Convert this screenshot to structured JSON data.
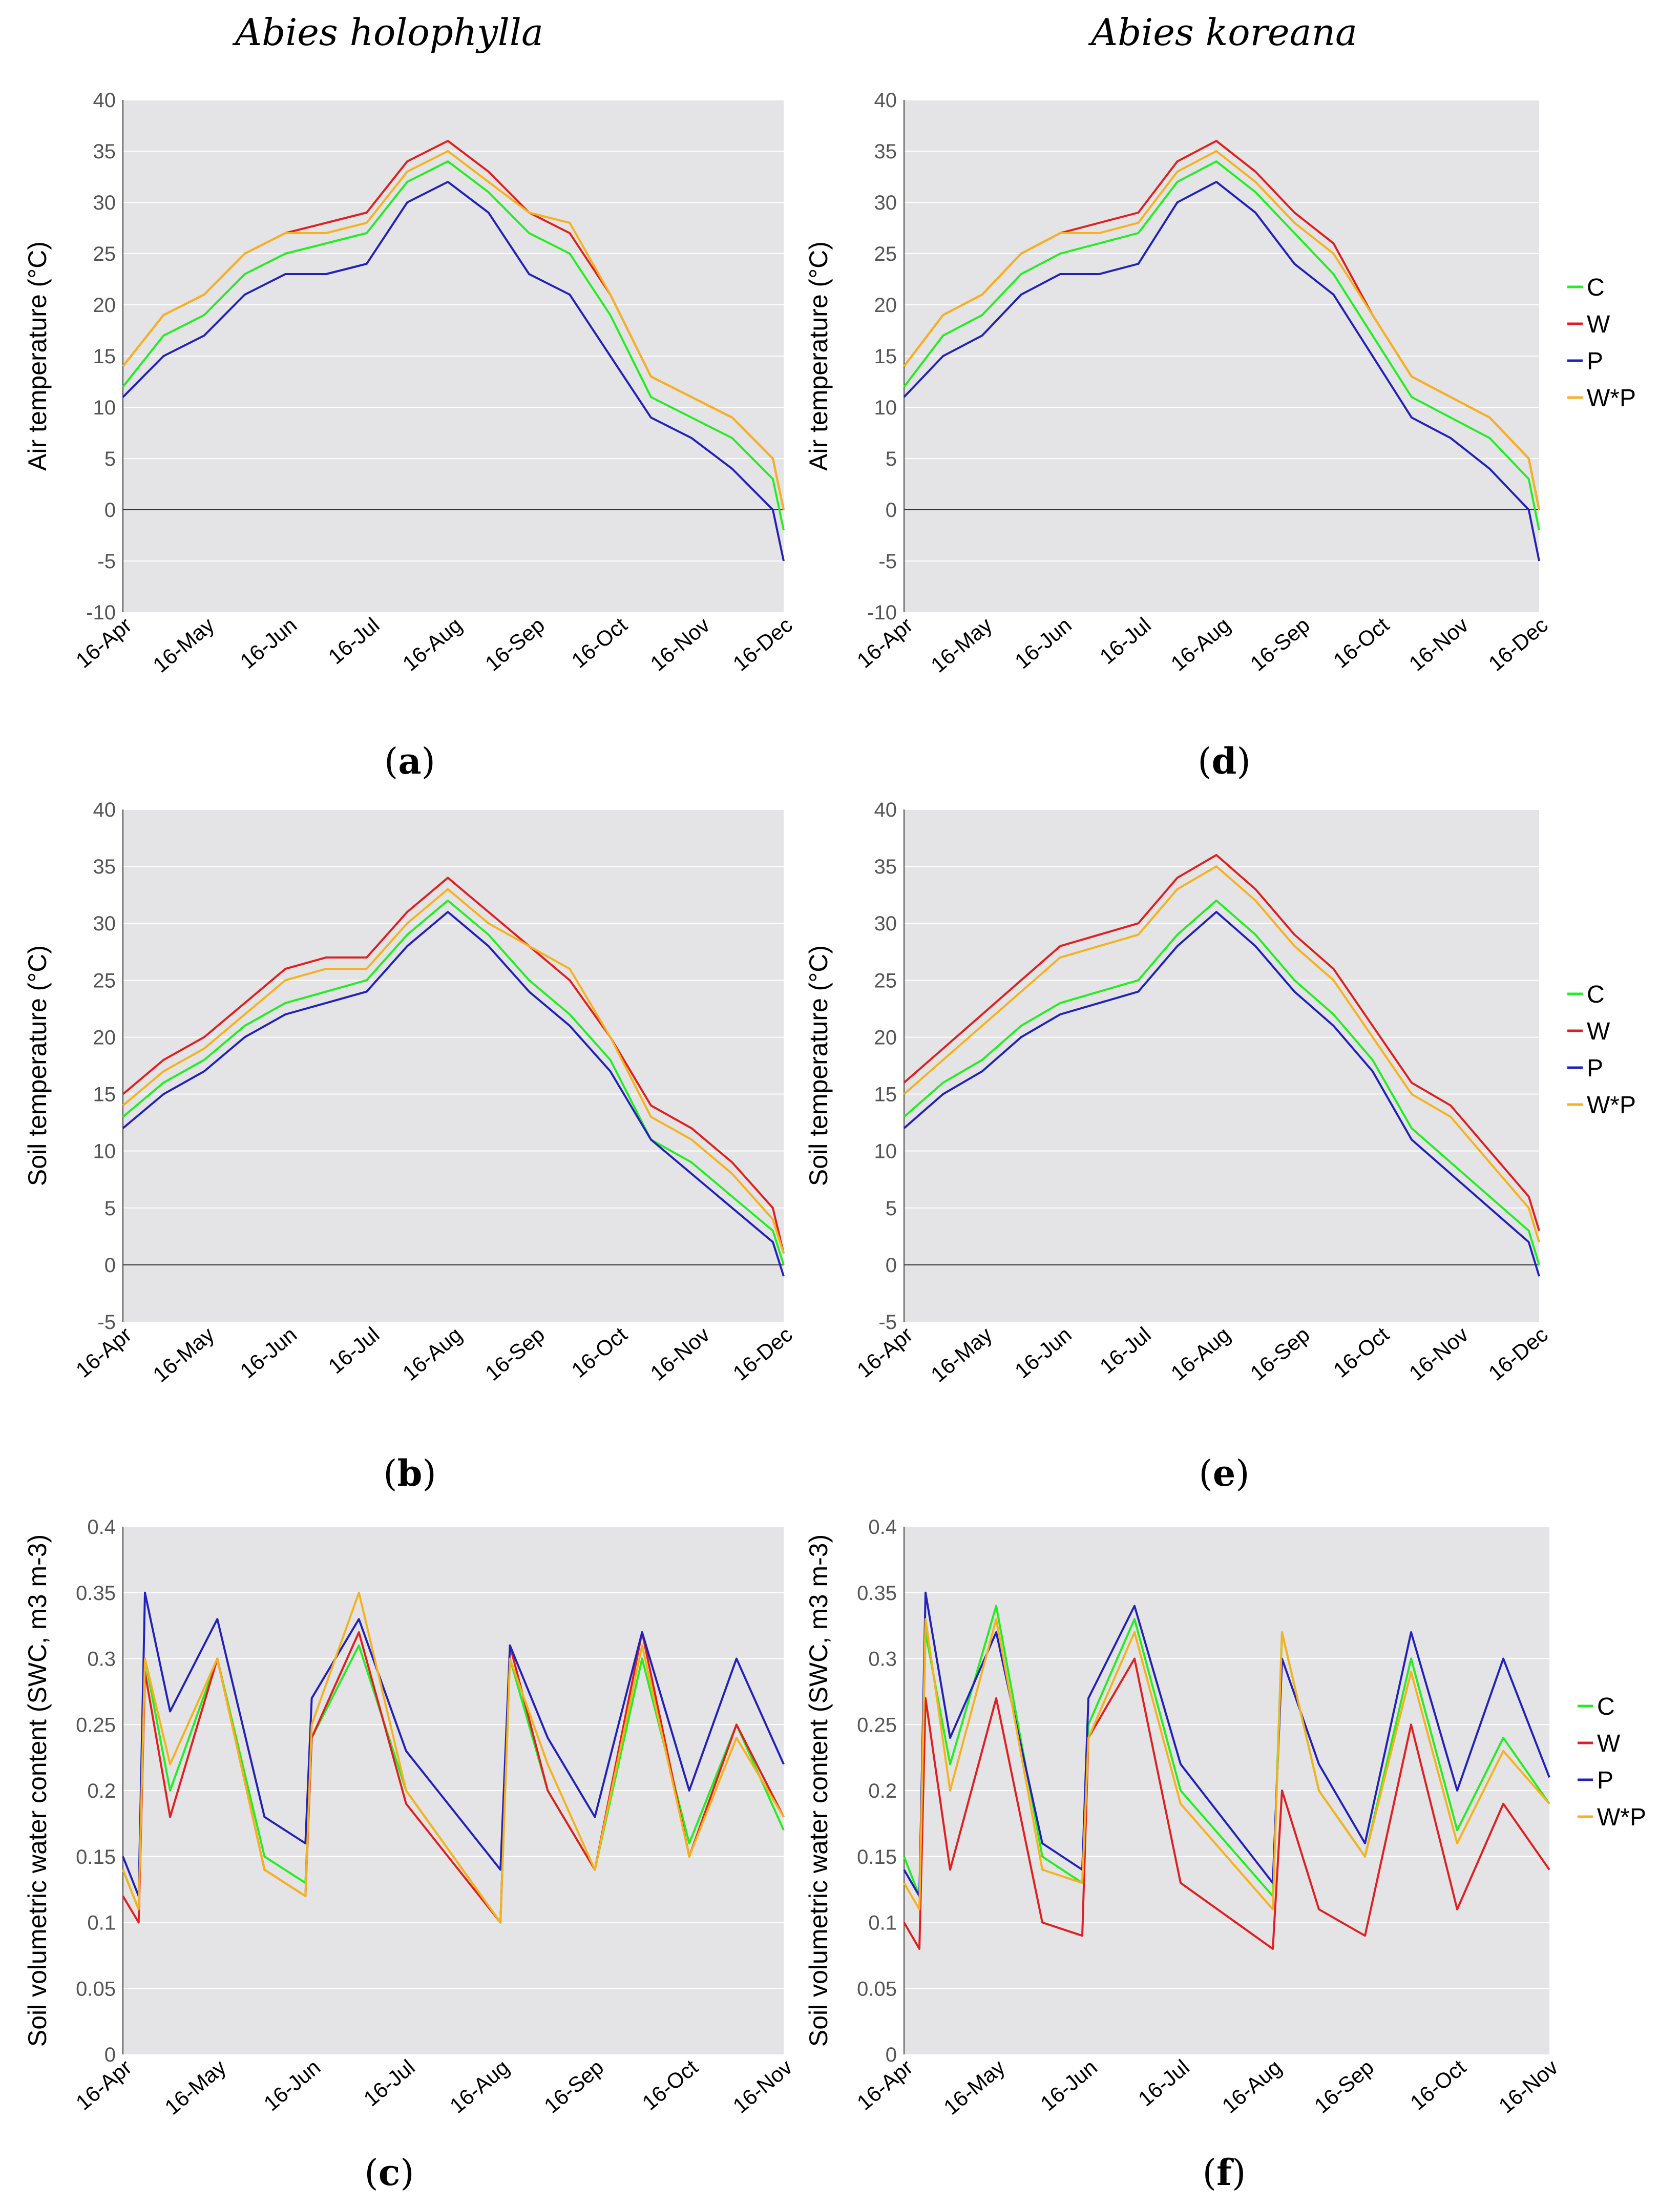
{
  "columns": [
    "Abies holophylla",
    "Abies koreana"
  ],
  "series_colors": {
    "C": "#22ee22",
    "W": "#e02020",
    "P": "#2222bb",
    "W*P": "#f5b21e"
  },
  "legend": [
    "C",
    "W",
    "P",
    "W*P"
  ],
  "chart_data": [
    {
      "id": "a",
      "caption": "a",
      "type": "line",
      "species": "Abies holophylla",
      "ylabel": "Air temperature (°C)",
      "xlabel": "",
      "ylim": [
        -10,
        40
      ],
      "yticks": [
        -10,
        -5,
        0,
        5,
        10,
        15,
        20,
        25,
        30,
        35,
        40
      ],
      "xticklabels": [
        "16-Apr",
        "16-May",
        "16-Jun",
        "16-Jul",
        "16-Aug",
        "16-Sep",
        "16-Oct",
        "16-Nov",
        "16-Dec"
      ],
      "x": [
        0,
        15,
        30,
        45,
        60,
        75,
        90,
        105,
        120,
        135,
        150,
        165,
        180,
        195,
        210,
        225,
        240,
        244
      ],
      "series": [
        {
          "name": "C",
          "values": [
            12,
            17,
            19,
            23,
            25,
            26,
            27,
            32,
            34,
            31,
            27,
            25,
            19,
            11,
            9,
            7,
            3,
            -2
          ]
        },
        {
          "name": "W",
          "values": [
            14,
            19,
            21,
            25,
            27,
            28,
            29,
            34,
            36,
            33,
            29,
            27,
            21,
            13,
            11,
            9,
            5,
            0
          ]
        },
        {
          "name": "P",
          "values": [
            11,
            15,
            17,
            21,
            23,
            23,
            24,
            30,
            32,
            29,
            23,
            21,
            15,
            9,
            7,
            4,
            0,
            -5
          ]
        },
        {
          "name": "W*P",
          "values": [
            14,
            19,
            21,
            25,
            27,
            27,
            28,
            33,
            35,
            32,
            29,
            28,
            21,
            13,
            11,
            9,
            5,
            0
          ]
        }
      ]
    },
    {
      "id": "b",
      "caption": "b",
      "type": "line",
      "species": "Abies holophylla",
      "ylabel": "Soil temperature (°C)",
      "xlabel": "",
      "ylim": [
        -5,
        40
      ],
      "yticks": [
        -5,
        0,
        5,
        10,
        15,
        20,
        25,
        30,
        35,
        40
      ],
      "xticklabels": [
        "16-Apr",
        "16-May",
        "16-Jun",
        "16-Jul",
        "16-Aug",
        "16-Sep",
        "16-Oct",
        "16-Nov",
        "16-Dec"
      ],
      "x": [
        0,
        15,
        30,
        45,
        60,
        75,
        90,
        105,
        120,
        135,
        150,
        165,
        180,
        195,
        210,
        225,
        240,
        244
      ],
      "series": [
        {
          "name": "C",
          "values": [
            13,
            16,
            18,
            21,
            23,
            24,
            25,
            29,
            32,
            29,
            25,
            22,
            18,
            11,
            9,
            6,
            3,
            0
          ]
        },
        {
          "name": "W",
          "values": [
            15,
            18,
            20,
            23,
            26,
            27,
            27,
            31,
            34,
            31,
            28,
            25,
            20,
            14,
            12,
            9,
            5,
            1
          ]
        },
        {
          "name": "P",
          "values": [
            12,
            15,
            17,
            20,
            22,
            23,
            24,
            28,
            31,
            28,
            24,
            21,
            17,
            11,
            8,
            5,
            2,
            -1
          ]
        },
        {
          "name": "W*P",
          "values": [
            14,
            17,
            19,
            22,
            25,
            26,
            26,
            30,
            33,
            30,
            28,
            26,
            20,
            13,
            11,
            8,
            4,
            1
          ]
        }
      ]
    },
    {
      "id": "c",
      "caption": "c",
      "type": "line",
      "species": "Abies holophylla",
      "ylabel": "Soil volumetric water content (SWC, m3 m-3)",
      "xlabel": "",
      "ylim": [
        0,
        0.4
      ],
      "yticks": [
        0,
        0.05,
        0.1,
        0.15,
        0.2,
        0.25,
        0.3,
        0.35,
        0.4
      ],
      "xticklabels": [
        "16-Apr",
        "16-May",
        "16-Jun",
        "16-Jul",
        "16-Aug",
        "16-Sep",
        "16-Oct",
        "16-Nov"
      ],
      "x": [
        0,
        5,
        7,
        15,
        30,
        45,
        58,
        60,
        75,
        90,
        120,
        123,
        135,
        150,
        165,
        180,
        195,
        210
      ],
      "series": [
        {
          "name": "C",
          "values": [
            0.14,
            0.11,
            0.3,
            0.2,
            0.3,
            0.15,
            0.13,
            0.24,
            0.31,
            0.2,
            0.1,
            0.3,
            0.2,
            0.14,
            0.3,
            0.16,
            0.25,
            0.17
          ]
        },
        {
          "name": "W",
          "values": [
            0.12,
            0.1,
            0.29,
            0.18,
            0.3,
            0.14,
            0.12,
            0.24,
            0.32,
            0.19,
            0.1,
            0.31,
            0.2,
            0.14,
            0.32,
            0.15,
            0.25,
            0.18
          ]
        },
        {
          "name": "P",
          "values": [
            0.15,
            0.12,
            0.35,
            0.26,
            0.33,
            0.18,
            0.16,
            0.27,
            0.33,
            0.23,
            0.14,
            0.31,
            0.24,
            0.18,
            0.32,
            0.2,
            0.3,
            0.22
          ]
        },
        {
          "name": "W*P",
          "values": [
            0.14,
            0.11,
            0.3,
            0.22,
            0.3,
            0.14,
            0.12,
            0.25,
            0.35,
            0.2,
            0.1,
            0.3,
            0.22,
            0.14,
            0.31,
            0.15,
            0.24,
            0.18
          ]
        }
      ]
    },
    {
      "id": "d",
      "caption": "d",
      "type": "line",
      "species": "Abies koreana",
      "ylabel": "Air temperature (°C)",
      "xlabel": "",
      "ylim": [
        -10,
        40
      ],
      "yticks": [
        -10,
        -5,
        0,
        5,
        10,
        15,
        20,
        25,
        30,
        35,
        40
      ],
      "xticklabels": [
        "16-Apr",
        "16-May",
        "16-Jun",
        "16-Jul",
        "16-Aug",
        "16-Sep",
        "16-Oct",
        "16-Nov",
        "16-Dec"
      ],
      "x": [
        0,
        15,
        30,
        45,
        60,
        75,
        90,
        105,
        120,
        135,
        150,
        165,
        180,
        195,
        210,
        225,
        240,
        244
      ],
      "series": [
        {
          "name": "C",
          "values": [
            12,
            17,
            19,
            23,
            25,
            26,
            27,
            32,
            34,
            31,
            27,
            23,
            17,
            11,
            9,
            7,
            3,
            -2
          ]
        },
        {
          "name": "W",
          "values": [
            14,
            19,
            21,
            25,
            27,
            28,
            29,
            34,
            36,
            33,
            29,
            26,
            19,
            13,
            11,
            9,
            5,
            0
          ]
        },
        {
          "name": "P",
          "values": [
            11,
            15,
            17,
            21,
            23,
            23,
            24,
            30,
            32,
            29,
            24,
            21,
            15,
            9,
            7,
            4,
            0,
            -5
          ]
        },
        {
          "name": "W*P",
          "values": [
            14,
            19,
            21,
            25,
            27,
            27,
            28,
            33,
            35,
            32,
            28,
            25,
            19,
            13,
            11,
            9,
            5,
            0
          ]
        }
      ]
    },
    {
      "id": "e",
      "caption": "e",
      "type": "line",
      "species": "Abies koreana",
      "ylabel": "Soil temperature (°C)",
      "xlabel": "",
      "ylim": [
        -5,
        40
      ],
      "yticks": [
        -5,
        0,
        5,
        10,
        15,
        20,
        25,
        30,
        35,
        40
      ],
      "xticklabels": [
        "16-Apr",
        "16-May",
        "16-Jun",
        "16-Jul",
        "16-Aug",
        "16-Sep",
        "16-Oct",
        "16-Nov",
        "16-Dec"
      ],
      "x": [
        0,
        15,
        30,
        45,
        60,
        75,
        90,
        105,
        120,
        135,
        150,
        165,
        180,
        195,
        210,
        225,
        240,
        244
      ],
      "series": [
        {
          "name": "C",
          "values": [
            13,
            16,
            18,
            21,
            23,
            24,
            25,
            29,
            32,
            29,
            25,
            22,
            18,
            12,
            9,
            6,
            3,
            0
          ]
        },
        {
          "name": "W",
          "values": [
            16,
            19,
            22,
            25,
            28,
            29,
            30,
            34,
            36,
            33,
            29,
            26,
            21,
            16,
            14,
            10,
            6,
            3
          ]
        },
        {
          "name": "P",
          "values": [
            12,
            15,
            17,
            20,
            22,
            23,
            24,
            28,
            31,
            28,
            24,
            21,
            17,
            11,
            8,
            5,
            2,
            -1
          ]
        },
        {
          "name": "W*P",
          "values": [
            15,
            18,
            21,
            24,
            27,
            28,
            29,
            33,
            35,
            32,
            28,
            25,
            20,
            15,
            13,
            9,
            5,
            2
          ]
        }
      ]
    },
    {
      "id": "f",
      "caption": "f",
      "type": "line",
      "species": "Abies koreana",
      "ylabel": "Soil volumetric water content (SWC, m3 m-3)",
      "xlabel": "",
      "ylim": [
        0,
        0.4
      ],
      "yticks": [
        0,
        0.05,
        0.1,
        0.15,
        0.2,
        0.25,
        0.3,
        0.35,
        0.4
      ],
      "xticklabels": [
        "16-Apr",
        "16-May",
        "16-Jun",
        "16-Jul",
        "16-Aug",
        "16-Sep",
        "16-Oct",
        "16-Nov"
      ],
      "x": [
        0,
        5,
        7,
        15,
        30,
        45,
        58,
        60,
        75,
        90,
        120,
        123,
        135,
        150,
        165,
        180,
        195,
        210
      ],
      "series": [
        {
          "name": "C",
          "values": [
            0.15,
            0.12,
            0.32,
            0.22,
            0.34,
            0.15,
            0.13,
            0.25,
            0.33,
            0.2,
            0.12,
            0.32,
            0.2,
            0.15,
            0.3,
            0.17,
            0.24,
            0.19
          ]
        },
        {
          "name": "W",
          "values": [
            0.1,
            0.08,
            0.27,
            0.14,
            0.27,
            0.1,
            0.09,
            0.24,
            0.3,
            0.13,
            0.08,
            0.2,
            0.11,
            0.09,
            0.25,
            0.11,
            0.19,
            0.14
          ]
        },
        {
          "name": "P",
          "values": [
            0.14,
            0.12,
            0.35,
            0.24,
            0.32,
            0.16,
            0.14,
            0.27,
            0.34,
            0.22,
            0.13,
            0.3,
            0.22,
            0.16,
            0.32,
            0.2,
            0.3,
            0.21
          ]
        },
        {
          "name": "W*P",
          "values": [
            0.13,
            0.11,
            0.33,
            0.2,
            0.33,
            0.14,
            0.13,
            0.24,
            0.32,
            0.19,
            0.11,
            0.32,
            0.2,
            0.15,
            0.29,
            0.16,
            0.23,
            0.19
          ]
        }
      ]
    }
  ]
}
